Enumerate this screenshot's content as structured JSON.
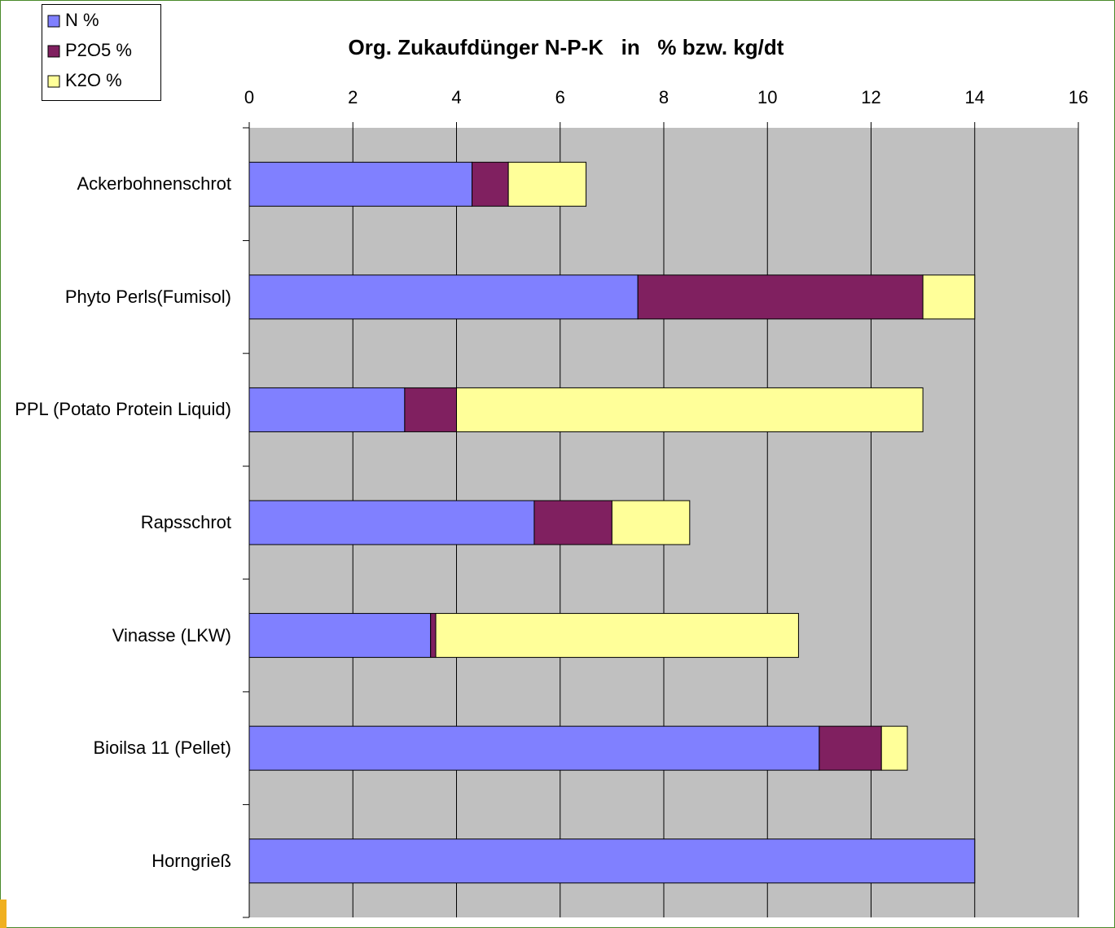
{
  "chart_data": {
    "type": "stacked-barh",
    "title": "Org. Zukaufdünger N-P-K   in   % bzw. kg/dt",
    "categories": [
      "Ackerbohnenschrot",
      "Phyto Perls(Fumisol)",
      "PPL (Potato Protein Liquid)",
      "Rapsschrot",
      "Vinasse (LKW)",
      "Bioilsa 11 (Pellet)",
      "Horngrieß"
    ],
    "series": [
      {
        "name": "N %",
        "color": "#8080ff",
        "values": [
          4.3,
          7.5,
          3,
          5.5,
          3.5,
          11,
          14
        ]
      },
      {
        "name": "P2O5 %",
        "color": "#802060",
        "values": [
          0.7,
          5.5,
          1,
          1.5,
          0.1,
          1.2,
          0
        ]
      },
      {
        "name": "K2O %",
        "color": "#ffff99",
        "values": [
          1.5,
          1,
          9,
          1.5,
          7,
          0.5,
          0
        ]
      }
    ],
    "xlim": [
      0,
      16
    ],
    "xticks": [
      0,
      2,
      4,
      6,
      8,
      10,
      12,
      14,
      16
    ],
    "grid": true,
    "legend": "top-left"
  }
}
